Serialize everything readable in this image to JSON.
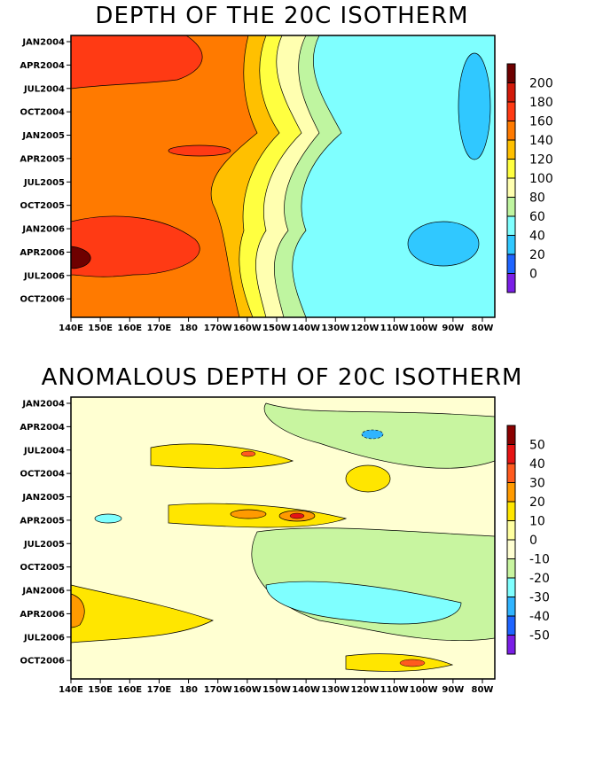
{
  "chart_data": [
    {
      "type": "heatmap",
      "title": "DEPTH OF THE 20C ISOTHERM",
      "x_tick_labels": [
        "140E",
        "150E",
        "160E",
        "170E",
        "180",
        "170W",
        "160W",
        "150W",
        "140W",
        "130W",
        "120W",
        "110W",
        "100W",
        "90W",
        "80W"
      ],
      "y_tick_labels": [
        "JAN2004",
        "APR2004",
        "JUL2004",
        "OCT2004",
        "JAN2005",
        "APR2005",
        "JUL2005",
        "OCT2005",
        "JAN2006",
        "APR2006",
        "JUL2006",
        "OCT2006"
      ],
      "colorbar_labels": [
        "200",
        "180",
        "160",
        "140",
        "120",
        "100",
        "80",
        "60",
        "40",
        "20",
        "0"
      ],
      "colorbar_colors": [
        "#6e0000",
        "#d21a0a",
        "#ff3a14",
        "#ff7a00",
        "#ffc000",
        "#ffff40",
        "#ffffb0",
        "#bff5a0",
        "#7fffff",
        "#30c8ff",
        "#1e64ff",
        "#7a1ee6"
      ],
      "contour_levels": [
        0,
        20,
        40,
        60,
        80,
        100,
        120,
        140,
        160,
        180,
        200
      ],
      "ylim": [
        0,
        220
      ],
      "grid": false,
      "legend_position": "right"
    },
    {
      "type": "heatmap",
      "title": "ANOMALOUS DEPTH OF 20C ISOTHERM",
      "x_tick_labels": [
        "140E",
        "150E",
        "160E",
        "170E",
        "180",
        "170W",
        "160W",
        "150W",
        "140W",
        "130W",
        "120W",
        "110W",
        "100W",
        "90W",
        "80W"
      ],
      "y_tick_labels": [
        "JAN2004",
        "APR2004",
        "JUL2004",
        "OCT2004",
        "JAN2005",
        "APR2005",
        "JUL2005",
        "OCT2005",
        "JAN2006",
        "APR2006",
        "JUL2006",
        "OCT2006"
      ],
      "colorbar_labels": [
        "50",
        "40",
        "30",
        "20",
        "10",
        "0",
        "-10",
        "-20",
        "-30",
        "-40",
        "-50"
      ],
      "colorbar_colors": [
        "#8b0000",
        "#e61414",
        "#ff5a1e",
        "#ff9a00",
        "#ffe600",
        "#ffffa0",
        "#ffffd2",
        "#c8f5a0",
        "#7fffff",
        "#30b4ff",
        "#1e64ff",
        "#7a1ee6"
      ],
      "contour_levels": [
        -50,
        -40,
        -30,
        -20,
        -10,
        0,
        10,
        20,
        30,
        40,
        50
      ],
      "grid": false,
      "legend_position": "right"
    }
  ]
}
